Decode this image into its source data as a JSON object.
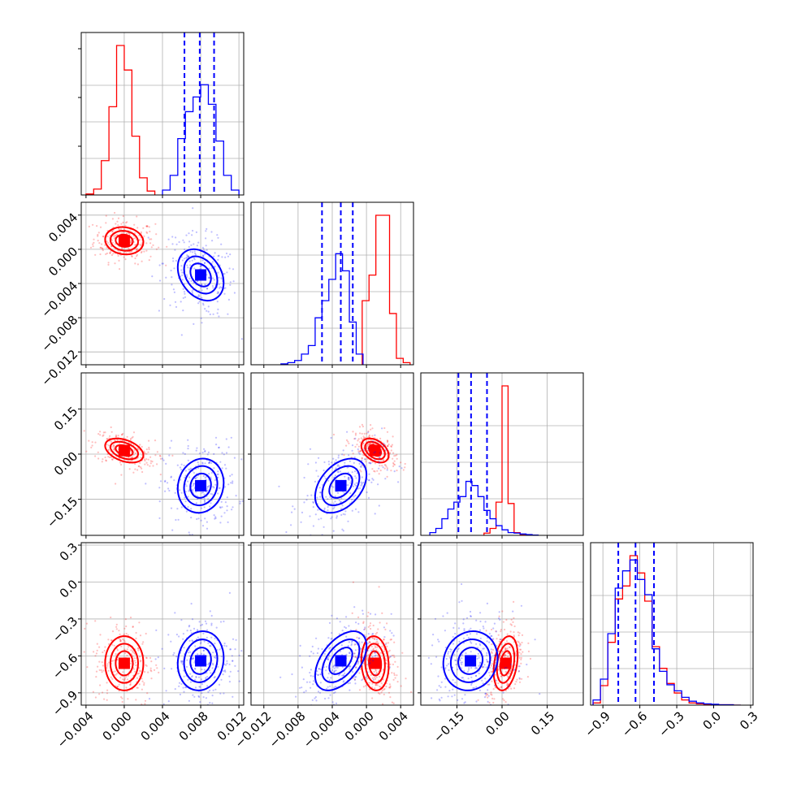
{
  "chart_data": {
    "type": "corner",
    "colors": {
      "red_set": "#ff0000",
      "blue_set": "#0000ff"
    },
    "grid": true,
    "dimensions": [
      {
        "range": [
          -0.0045,
          0.0125
        ],
        "ticks": [
          -0.004,
          0.0,
          0.004,
          0.008,
          0.012
        ],
        "tick_labels": [
          "−0.004",
          "0.000",
          "0.004",
          "0.008",
          "0.012"
        ],
        "quantiles_blue": [
          0.0063,
          0.0079,
          0.0094
        ],
        "hist_red": {
          "edges": [
            -0.004,
            -0.0032,
            -0.0024,
            -0.0016,
            -0.0008,
            0.0,
            0.0008,
            0.0016,
            0.0024,
            0.0032
          ],
          "counts": [
            2,
            12,
            70,
            180,
            305,
            255,
            120,
            35,
            8
          ]
        },
        "hist_blue": {
          "edges": [
            0.004,
            0.0048,
            0.0056,
            0.0064,
            0.0072,
            0.008,
            0.0088,
            0.0096,
            0.0104,
            0.0112,
            0.012
          ],
          "counts": [
            10,
            40,
            115,
            170,
            200,
            225,
            185,
            110,
            40,
            10
          ]
        }
      },
      {
        "range": [
          -0.0135,
          0.0055
        ],
        "ticks": [
          -0.012,
          -0.008,
          -0.004,
          0.0,
          0.004
        ],
        "tick_labels": [
          "−0.012",
          "−0.008",
          "−0.004",
          "0.000",
          "0.004"
        ],
        "quantiles_blue": [
          -0.0052,
          -0.003,
          -0.0016
        ],
        "hist_red": {
          "edges": [
            -0.0005,
            0.0003,
            0.0011,
            0.0019,
            0.0027,
            0.0035,
            0.0043,
            0.0051
          ],
          "counts": [
            150,
            210,
            350,
            350,
            120,
            15,
            5
          ]
        },
        "hist_blue": {
          "edges": [
            -0.01,
            -0.0092,
            -0.0084,
            -0.0076,
            -0.0068,
            -0.006,
            -0.0052,
            -0.0044,
            -0.0036,
            -0.0028,
            -0.002,
            -0.0012,
            -0.0004
          ],
          "counts": [
            2,
            5,
            10,
            25,
            45,
            110,
            150,
            200,
            260,
            220,
            100,
            25
          ]
        }
      },
      {
        "range": [
          -0.27,
          0.27
        ],
        "ticks": [
          -0.15,
          0.0,
          0.15
        ],
        "tick_labels": [
          "−0.15",
          "0.00",
          "0.15"
        ],
        "quantiles_blue": [
          -0.145,
          -0.103,
          -0.05
        ],
        "hist_red": {
          "edges": [
            -0.06,
            -0.04,
            -0.02,
            0.0,
            0.02,
            0.04,
            0.06,
            0.08
          ],
          "counts": [
            8,
            25,
            120,
            540,
            115,
            10,
            2
          ]
        },
        "hist_blue": {
          "edges": [
            -0.24,
            -0.22,
            -0.2,
            -0.18,
            -0.16,
            -0.14,
            -0.12,
            -0.1,
            -0.08,
            -0.06,
            -0.04,
            -0.02,
            0.0,
            0.02,
            0.04,
            0.06,
            0.08,
            0.1,
            0.12
          ],
          "counts": [
            10,
            25,
            60,
            95,
            120,
            140,
            195,
            180,
            140,
            90,
            60,
            35,
            20,
            10,
            8,
            5,
            3,
            1
          ]
        }
      },
      {
        "range": [
          -1.0,
          0.32
        ],
        "ticks": [
          -0.9,
          -0.6,
          -0.3,
          0.0,
          0.3
        ],
        "tick_labels": [
          "−0.9",
          "−0.6",
          "−0.3",
          "0.0",
          "0.3"
        ],
        "quantiles_blue": [
          -0.775,
          -0.635,
          -0.485
        ],
        "hist_red": {
          "edges": [
            -0.98,
            -0.92,
            -0.86,
            -0.8,
            -0.74,
            -0.68,
            -0.62,
            -0.56,
            -0.5,
            -0.44,
            -0.38,
            -0.32,
            -0.26,
            -0.2,
            -0.14,
            -0.08,
            -0.02,
            0.04,
            0.1,
            0.16,
            0.22
          ],
          "counts": [
            5,
            45,
            145,
            245,
            275,
            345,
            305,
            240,
            135,
            85,
            50,
            28,
            12,
            5,
            3,
            2,
            1,
            1,
            1,
            0
          ]
        },
        "hist_blue": {
          "edges": [
            -0.98,
            -0.92,
            -0.86,
            -0.8,
            -0.74,
            -0.68,
            -0.62,
            -0.56,
            -0.5,
            -0.44,
            -0.38,
            -0.32,
            -0.26,
            -0.2,
            -0.14,
            -0.08,
            -0.02,
            0.04,
            0.1,
            0.16,
            0.22
          ],
          "counts": [
            12,
            60,
            165,
            270,
            310,
            335,
            290,
            255,
            130,
            78,
            47,
            33,
            18,
            9,
            5,
            3,
            2,
            1,
            1,
            0
          ]
        }
      }
    ],
    "means": {
      "red": [
        0.0,
        0.001,
        0.012,
        -0.66
      ],
      "blue": [
        0.008,
        -0.003,
        -0.105,
        -0.64
      ]
    },
    "spreads": {
      "red": [
        0.001,
        0.0008,
        0.02,
        0.11
      ],
      "blue": [
        0.0012,
        0.0015,
        0.045,
        0.12
      ]
    },
    "correlations": {
      "red": {
        "0-1": -0.1,
        "0-2": -0.4,
        "1-2": -0.4,
        "0-3": 0.0,
        "1-3": -0.1,
        "2-3": 0.3
      },
      "blue": {
        "0-1": -0.3,
        "0-2": 0.1,
        "1-2": 0.4,
        "0-3": 0.1,
        "1-3": 0.5,
        "2-3": 0.1
      }
    }
  }
}
